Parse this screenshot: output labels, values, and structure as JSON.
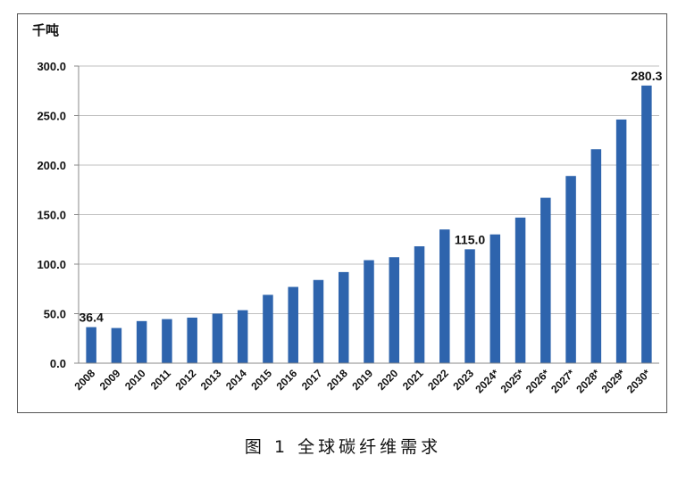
{
  "caption": "图 1  全球碳纤维需求",
  "chart_data": {
    "type": "bar",
    "ylabel": "千吨",
    "ylim": [
      0,
      300
    ],
    "yticks": [
      "0.0",
      "50.0",
      "100.0",
      "150.0",
      "200.0",
      "250.0",
      "300.0"
    ],
    "grid": true,
    "bar_color": "#2e64ad",
    "categories": [
      "2008",
      "2009",
      "2010",
      "2011",
      "2012",
      "2013",
      "2014",
      "2015",
      "2016",
      "2017",
      "2018",
      "2019",
      "2020",
      "2021",
      "2022",
      "2023",
      "2024*",
      "2025*",
      "2026*",
      "2027*",
      "2028*",
      "2029*",
      "2030*"
    ],
    "values": [
      36.4,
      35.5,
      42.5,
      44.5,
      46,
      50,
      53.5,
      69,
      77,
      84,
      92,
      104,
      107,
      118,
      135,
      115.0,
      130,
      147,
      167,
      189,
      216,
      246,
      280.3
    ],
    "data_labels": [
      {
        "index": 0,
        "text": "36.4"
      },
      {
        "index": 15,
        "text": "115.0"
      },
      {
        "index": 22,
        "text": "280.3"
      }
    ]
  }
}
